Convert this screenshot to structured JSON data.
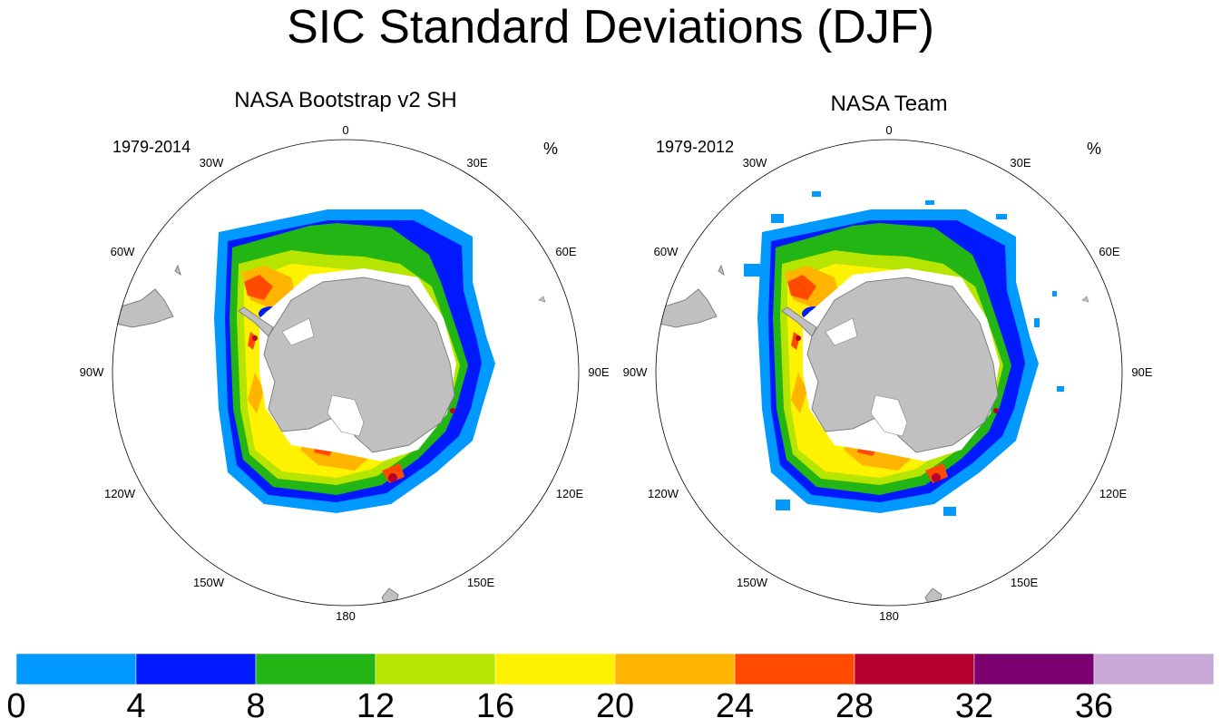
{
  "title": "SIC Standard Deviations (DJF)",
  "units": "%",
  "panels": [
    {
      "title": "NASA Bootstrap v2 SH",
      "period": "1979-2014",
      "lon_labels": [
        "0",
        "30E",
        "60E",
        "90E",
        "120E",
        "150E",
        "180",
        "150W",
        "120W",
        "90W",
        "60W",
        "30W"
      ]
    },
    {
      "title": "NASA Team",
      "period": "1979-2012",
      "lon_labels": [
        "0",
        "30E",
        "60E",
        "90E",
        "120E",
        "150E",
        "180",
        "150W",
        "120W",
        "90W",
        "60W",
        "30W"
      ]
    }
  ],
  "colorbar": {
    "labels": [
      "0",
      "4",
      "8",
      "12",
      "16",
      "20",
      "24",
      "28",
      "32",
      "36"
    ],
    "colors": [
      "#0099ff",
      "#0019ff",
      "#22b514",
      "#b5e500",
      "#fff200",
      "#ffb400",
      "#ff4a00",
      "#b5002f",
      "#7a0070",
      "#c8a8d6"
    ]
  },
  "colors": {
    "land": "#c0c0c0",
    "coast": "#808080"
  }
}
